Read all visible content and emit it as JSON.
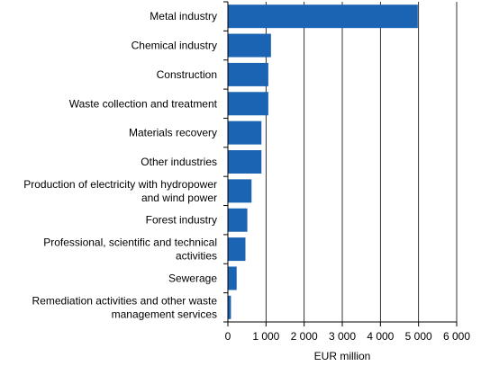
{
  "chart_data": {
    "type": "bar",
    "orientation": "horizontal",
    "title": "",
    "xlabel": "EUR million",
    "ylabel": "",
    "xlim": [
      0,
      6000
    ],
    "x_ticks": [
      0,
      1000,
      2000,
      3000,
      4000,
      5000,
      6000
    ],
    "x_tick_labels": [
      "0",
      "1 000",
      "2 000",
      "3 000",
      "4 000",
      "5 000",
      "6 000"
    ],
    "grid": "vertical",
    "legend": "none",
    "bar_color": "#1b64b4",
    "categories": [
      [
        "Metal industry"
      ],
      [
        "Chemical industry"
      ],
      [
        "Construction"
      ],
      [
        "Waste collection and treatment"
      ],
      [
        "Materials recovery"
      ],
      [
        "Other industries"
      ],
      [
        "Production of electricity with hydropower",
        "and wind power"
      ],
      [
        "Forest industry"
      ],
      [
        "Professional, scientific and technical",
        "activities"
      ],
      [
        "Sewerage"
      ],
      [
        "Remediation activities and other waste",
        "management services"
      ]
    ],
    "values": [
      4980,
      1130,
      1060,
      1060,
      880,
      880,
      620,
      510,
      460,
      230,
      80
    ]
  }
}
